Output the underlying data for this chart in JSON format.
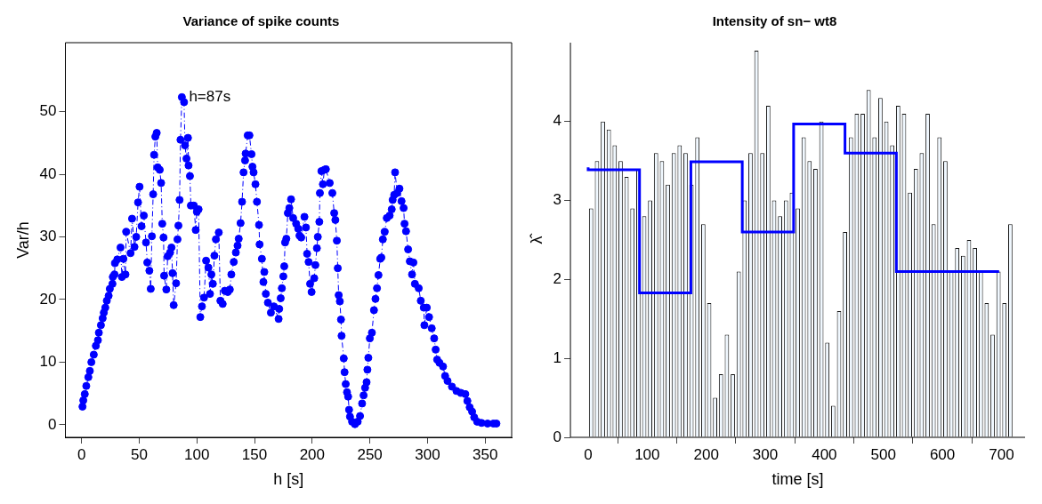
{
  "chart_data": [
    {
      "type": "line",
      "title": "Variance of spike counts",
      "xlabel": "h [s]",
      "ylabel": "Var/h",
      "color": "#0000ff",
      "marker": "circle",
      "line_style": "dashed",
      "x": [
        0.8,
        1.5,
        2.8,
        4.1,
        5.9,
        7.2,
        8.5,
        10.6,
        12.4,
        14.2,
        15,
        16.8,
        18.3,
        19.3,
        20.6,
        21.9,
        23.5,
        24.5,
        26.8,
        27.1,
        28.6,
        29,
        31,
        33.8,
        35,
        36.3,
        38.1,
        38.7,
        42.5,
        43.8,
        45.9,
        47.4,
        49,
        50.3,
        52,
        54,
        55.9,
        57,
        58.8,
        60,
        61,
        62.1,
        62.9,
        64,
        65.2,
        66,
        67.8,
        69,
        70,
        71.1,
        71.6,
        73.5,
        74.7,
        76.8,
        78,
        78.9,
        79.9,
        82,
        83.2,
        84,
        85,
        85.8,
        87,
        88.9,
        89.7,
        91,
        92.3,
        92.8,
        94,
        94.8,
        97.4,
        99,
        100,
        101.5,
        103,
        104.4,
        106.2,
        108,
        110,
        111.4,
        112.6,
        113.9,
        115.2,
        116.5,
        119,
        120.4,
        122.4,
        124.2,
        126.8,
        128.6,
        129.9,
        132,
        133.8,
        135.3,
        136.3,
        137.9,
        139.2,
        140.5,
        141.8,
        142.3,
        144.1,
        145.6,
        147.4,
        148.2,
        149.2,
        150.8,
        152.1,
        153.9,
        154.4,
        156.4,
        157.7,
        158.5,
        159.8,
        161.6,
        164.2,
        166.8,
        170.9,
        171.4,
        172.7,
        173.7,
        175,
        175.8,
        176.5,
        177.6,
        178.9,
        180.2,
        181.7,
        183.5,
        186.1,
        187.9,
        189,
        190.5,
        193.3,
        194.6,
        195.6,
        196.9,
        198.2,
        199.5,
        201.8,
        202.8,
        204.1,
        204.9,
        206.2,
        206.7,
        208,
        209.3,
        210.6,
        211.9,
        215.2,
        217.5,
        219.1,
        220.1,
        221.4,
        222.2,
        223,
        224,
        225,
        225.5,
        227.4,
        228.1,
        229.1,
        230.2,
        231.2,
        232,
        232.8,
        234.6,
        237.1,
        239.5,
        241.5,
        243.3,
        244.6,
        245.9,
        247.2,
        247.9,
        248.7,
        250,
        251.8,
        253.6,
        254.9,
        256.2,
        257.5,
        259,
        260,
        261.3,
        262.9,
        264.7,
        267.2,
        269,
        269.8,
        271.1,
        271.9,
        273.7,
        275.7,
        277.5,
        279.3,
        280.1,
        281.4,
        283.2,
        284.7,
        286.6,
        287.8,
        289.1,
        292.4,
        294.2,
        296.8,
        297.3,
        299.4,
        301.4,
        303.7,
        305.8,
        307.1,
        308.4,
        310.4,
        313.5,
        315.3,
        317.4,
        321.2,
        325.1,
        329,
        332.8,
        334.6,
        336.6,
        338.7,
        340.5,
        343.1,
        346.9,
        352.1,
        357.2,
        359.8
      ],
      "values": [
        2.9,
        3.9,
        4.9,
        6.2,
        7.6,
        8.6,
        10.0,
        11.2,
        12.6,
        13.5,
        14.7,
        15.9,
        17.0,
        17.9,
        18.7,
        19.8,
        20.6,
        21.7,
        22.5,
        23.6,
        24.0,
        25.8,
        26.4,
        28.3,
        23.6,
        26.5,
        24.0,
        30.8,
        27.4,
        32.9,
        28.4,
        30.0,
        35.5,
        38.0,
        31.7,
        33.4,
        29.1,
        25.9,
        24.6,
        21.7,
        30.1,
        36.8,
        43.1,
        46.0,
        46.6,
        41.1,
        40.7,
        38.6,
        32.1,
        29.9,
        23.8,
        21.6,
        26.9,
        27.5,
        28.3,
        24.2,
        19.1,
        22.6,
        29.6,
        31.8,
        35.9,
        45.5,
        52.3,
        51.5,
        44.6,
        42.5,
        45.8,
        41.4,
        39.7,
        35,
        35,
        31.1,
        34,
        34.4,
        17.2,
        18.9,
        20.3,
        26.2,
        25.1,
        20.9,
        24.0,
        22.5,
        27.0,
        29.6,
        30.7,
        19.8,
        19.3,
        21.4,
        21.2,
        21.6,
        24.0,
        26.0,
        27.5,
        28.6,
        29.7,
        32.2,
        35.6,
        40.3,
        42.2,
        43.3,
        46.2,
        46.2,
        43.2,
        41.2,
        40.3,
        38.4,
        35.6,
        31.9,
        28.8,
        26.5,
        22.8,
        24.4,
        20.9,
        19.5,
        17.9,
        18.9,
        16.9,
        18.5,
        20.2,
        21.8,
        23.7,
        25.3,
        29.1,
        29.7,
        33.8,
        34.6,
        36.0,
        33.0,
        32.1,
        31.3,
        30.2,
        29.9,
        33.2,
        31.5,
        27.3,
        26.0,
        22.5,
        21.2,
        23.4,
        25.5,
        28.2,
        30.0,
        32.4,
        37.0,
        40.5,
        38.4,
        40.7,
        40.8,
        38.6,
        37.0,
        33.8,
        32.7,
        29.4,
        25.0,
        20.7,
        19.7,
        16.8,
        14.2,
        10.6,
        8.4,
        6.5,
        5.2,
        4.5,
        2.4,
        1.3,
        0.5,
        0.1,
        0.5,
        1.4,
        3.4,
        4.7,
        5.9,
        6.8,
        8.8,
        10.7,
        13.8,
        14.7,
        18.3,
        20.1,
        21.8,
        23.9,
        26.5,
        26.7,
        29.6,
        30.8,
        33.0,
        33.4,
        34.4,
        35.9,
        36.7,
        40.3,
        37.0,
        37.7,
        35.7,
        34.6,
        32.1,
        30.9,
        28.0,
        26.1,
        24.0,
        25.9,
        22.5,
        21.8,
        19.8,
        18.7,
        15.9,
        18.7,
        17.2,
        15.4,
        13.8,
        12.0,
        10.4,
        9.9,
        9.3,
        7.8,
        7.0,
        6.1,
        5.4,
        5.1,
        4.9,
        3.8,
        2.8,
        2.1,
        1.2,
        0.5,
        0.3,
        0.2,
        0.2,
        0.2
      ],
      "xlim": [
        -14,
        373
      ],
      "ylim": [
        -2,
        61
      ],
      "xticks": [
        0,
        50,
        100,
        150,
        200,
        250,
        300,
        350
      ],
      "yticks": [
        0,
        10,
        20,
        30,
        40,
        50
      ],
      "annotations": [
        {
          "text": "h=87s",
          "x": 87,
          "y": 52.3
        }
      ]
    },
    {
      "type": "histogram",
      "title": "Intensity of sn− wt8",
      "xlabel": "time [s]",
      "ylabel": "λ̂",
      "color": "#f0f8ff",
      "bins": [
        0,
        10,
        20,
        30,
        40,
        50,
        60,
        70,
        80,
        90,
        100,
        110,
        120,
        130,
        140,
        150,
        160,
        170,
        180,
        190,
        200,
        210,
        220,
        230,
        240,
        250,
        260,
        270,
        280,
        290,
        300,
        310,
        320,
        330,
        340,
        350,
        360,
        370,
        380,
        390,
        400,
        410,
        420,
        430,
        440,
        450,
        460,
        470,
        480,
        490,
        500,
        510,
        520,
        530,
        540,
        550,
        560,
        570,
        580,
        590,
        600,
        610,
        620,
        630,
        640,
        650,
        660,
        670,
        680,
        690,
        700,
        710,
        720
      ],
      "values": [
        2.9,
        3.5,
        4.0,
        3.9,
        3.7,
        3.5,
        3.3,
        2.9,
        3.4,
        2.8,
        3.0,
        3.6,
        3.5,
        3.2,
        3.6,
        3.7,
        3.6,
        3.2,
        3.8,
        2.7,
        1.7,
        0.5,
        0.8,
        1.3,
        0.8,
        2.1,
        3.0,
        3.6,
        4.9,
        3.6,
        4.2,
        3.0,
        2.8,
        3.0,
        3.1,
        2.9,
        3.8,
        3.5,
        3.4,
        4.0,
        1.2,
        0.4,
        1.6,
        2.6,
        3.8,
        4.1,
        4.1,
        4.4,
        3.8,
        4.3,
        4.0,
        3.7,
        4.2,
        4.1,
        3.1,
        3.4,
        3.6,
        4.1,
        2.7,
        3.8,
        3.5,
        2.1,
        2.4,
        2.3,
        2.5,
        2.4,
        2.1,
        1.7,
        1.3,
        2.1,
        1.7,
        2.7
      ],
      "series": [
        {
          "type": "step",
          "color": "#0000ff",
          "x": [
            0,
            87,
            174,
            261,
            348,
            435,
            522,
            609,
            696
          ],
          "values": [
            3.42,
            3.39,
            1.83,
            3.49,
            2.6,
            3.97,
            3.6,
            2.1,
            2.1
          ]
        }
      ],
      "xlim": [
        -30,
        740
      ],
      "ylim": [
        0,
        5
      ],
      "xticks": [
        0,
        100,
        200,
        300,
        400,
        500,
        600,
        700
      ],
      "yticks": [
        0,
        1,
        2,
        3,
        4
      ]
    }
  ]
}
